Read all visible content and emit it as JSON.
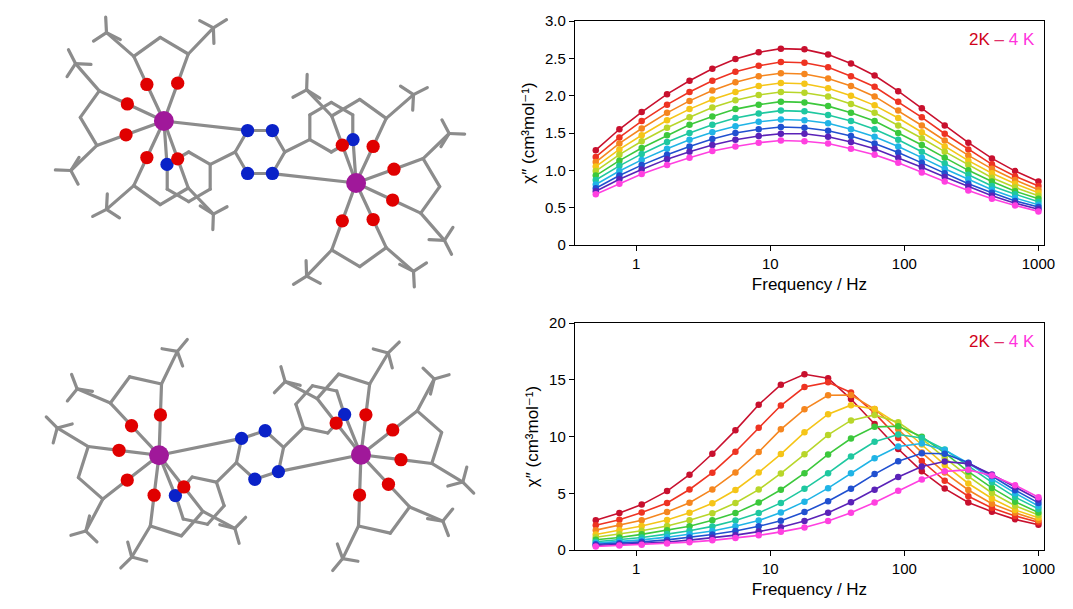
{
  "chart_data": [
    {
      "type": "line",
      "x": [
        0.5,
        0.75,
        1.1,
        1.7,
        2.5,
        3.7,
        5.5,
        8.2,
        12,
        18,
        27,
        40,
        60,
        90,
        135,
        200,
        300,
        450,
        670,
        1000
      ],
      "x_label": "Frequency / Hz",
      "y_label": "χ″ (cm³mol⁻¹)",
      "xlim": [
        0.35,
        1100
      ],
      "xticks": [
        1,
        10,
        100,
        1000
      ],
      "ylim": [
        0,
        3
      ],
      "yticks": [
        0,
        0.5,
        {
          "value": 1,
          "label": "1.0"
        },
        1.5,
        {
          "value": 2,
          "label": "2.0"
        },
        2.5,
        {
          "value": 3,
          "label": "3.0"
        }
      ],
      "log": "x",
      "grid": false,
      "marker": "circle",
      "line_style": "solid",
      "annotation": [
        {
          "text": "2K",
          "color": "#d0021b"
        },
        {
          "text": " – ",
          "color": "#e0306a"
        },
        {
          "text": "4 K",
          "color": "#ff33dd"
        }
      ],
      "series": [
        {
          "color": "#c8102e",
          "values": [
            1.27,
            1.55,
            1.78,
            2.02,
            2.2,
            2.36,
            2.49,
            2.58,
            2.63,
            2.62,
            2.55,
            2.43,
            2.27,
            2.06,
            1.83,
            1.6,
            1.37,
            1.16,
            0.99,
            0.85
          ]
        },
        {
          "color": "#ee3322",
          "values": [
            1.18,
            1.44,
            1.66,
            1.88,
            2.05,
            2.2,
            2.32,
            2.4,
            2.45,
            2.44,
            2.38,
            2.26,
            2.12,
            1.92,
            1.71,
            1.49,
            1.28,
            1.08,
            0.92,
            0.79
          ]
        },
        {
          "color": "#f5861f",
          "values": [
            1.11,
            1.36,
            1.56,
            1.77,
            1.93,
            2.07,
            2.18,
            2.26,
            2.3,
            2.29,
            2.23,
            2.13,
            1.99,
            1.8,
            1.6,
            1.4,
            1.2,
            1.02,
            0.87,
            0.74
          ]
        },
        {
          "color": "#f5c518",
          "values": [
            1.05,
            1.28,
            1.47,
            1.67,
            1.82,
            1.95,
            2.05,
            2.13,
            2.17,
            2.16,
            2.1,
            2.0,
            1.87,
            1.7,
            1.51,
            1.32,
            1.13,
            0.96,
            0.82,
            0.7
          ]
        },
        {
          "color": "#b8d62a",
          "values": [
            0.99,
            1.21,
            1.39,
            1.57,
            1.71,
            1.84,
            1.94,
            2.01,
            2.05,
            2.04,
            1.99,
            1.89,
            1.77,
            1.6,
            1.43,
            1.25,
            1.07,
            0.9,
            0.77,
            0.66
          ]
        },
        {
          "color": "#3cc83c",
          "values": [
            0.93,
            1.13,
            1.3,
            1.47,
            1.61,
            1.72,
            1.82,
            1.88,
            1.92,
            1.91,
            1.86,
            1.77,
            1.66,
            1.5,
            1.34,
            1.17,
            1.0,
            0.85,
            0.72,
            0.62
          ]
        },
        {
          "color": "#1fc8a0",
          "values": [
            0.87,
            1.06,
            1.22,
            1.38,
            1.5,
            1.61,
            1.7,
            1.76,
            1.8,
            1.79,
            1.74,
            1.66,
            1.55,
            1.41,
            1.25,
            1.09,
            0.94,
            0.79,
            0.68,
            0.58
          ]
        },
        {
          "color": "#20b4e6",
          "values": [
            0.81,
            0.99,
            1.14,
            1.29,
            1.41,
            1.51,
            1.59,
            1.65,
            1.68,
            1.67,
            1.63,
            1.55,
            1.45,
            1.32,
            1.17,
            1.02,
            0.88,
            0.74,
            0.63,
            0.54
          ]
        },
        {
          "color": "#2050d0",
          "values": [
            0.76,
            0.93,
            1.07,
            1.21,
            1.32,
            1.42,
            1.5,
            1.55,
            1.58,
            1.57,
            1.53,
            1.46,
            1.36,
            1.24,
            1.1,
            0.96,
            0.82,
            0.7,
            0.59,
            0.51
          ]
        },
        {
          "color": "#5a22b8",
          "values": [
            0.72,
            0.88,
            1.01,
            1.15,
            1.25,
            1.34,
            1.41,
            1.46,
            1.49,
            1.49,
            1.45,
            1.38,
            1.29,
            1.17,
            1.04,
            0.91,
            0.78,
            0.66,
            0.56,
            0.48
          ]
        },
        {
          "color": "#ff40e0",
          "values": [
            0.68,
            0.82,
            0.95,
            1.07,
            1.17,
            1.26,
            1.32,
            1.37,
            1.4,
            1.39,
            1.36,
            1.29,
            1.21,
            1.1,
            0.97,
            0.85,
            0.73,
            0.62,
            0.53,
            0.45
          ]
        }
      ]
    },
    {
      "type": "line",
      "x": [
        0.5,
        0.75,
        1.1,
        1.7,
        2.5,
        3.7,
        5.5,
        8.2,
        12,
        18,
        27,
        40,
        60,
        90,
        135,
        200,
        300,
        450,
        670,
        1000
      ],
      "x_label": "Frequency / Hz",
      "y_label": "χ″ (cm³mol⁻¹)",
      "xlim": [
        0.35,
        1100
      ],
      "xticks": [
        1,
        10,
        100,
        1000
      ],
      "ylim": [
        0,
        20
      ],
      "yticks": [
        0,
        5,
        10,
        15,
        20
      ],
      "log": "x",
      "grid": false,
      "marker": "circle",
      "line_style": "solid",
      "annotation": [
        {
          "text": "2K",
          "color": "#d0021b"
        },
        {
          "text": " – ",
          "color": "#e0306a"
        },
        {
          "text": "4 K",
          "color": "#ff33dd"
        }
      ],
      "series": [
        {
          "color": "#c8102e",
          "values": [
            2.62,
            3.26,
            4.0,
            5.19,
            6.63,
            8.48,
            10.54,
            12.8,
            14.57,
            15.48,
            15.14,
            13.3,
            11.1,
            8.9,
            6.93,
            5.41,
            4.19,
            3.38,
            2.7,
            2.22
          ]
        },
        {
          "color": "#ee3322",
          "values": [
            2.18,
            2.66,
            3.3,
            4.14,
            5.33,
            6.81,
            8.66,
            10.77,
            12.73,
            14.36,
            14.77,
            13.88,
            12.06,
            9.87,
            7.84,
            6.11,
            4.74,
            3.7,
            3.0,
            2.44
          ]
        },
        {
          "color": "#f5861f",
          "values": [
            1.75,
            2.17,
            2.62,
            3.35,
            4.17,
            5.34,
            6.83,
            8.64,
            10.63,
            12.39,
            13.63,
            13.66,
            12.42,
            10.64,
            8.58,
            6.82,
            5.29,
            4.08,
            3.28,
            2.62
          ]
        },
        {
          "color": "#f5c518",
          "values": [
            1.36,
            1.73,
            2.11,
            2.65,
            3.28,
            4.12,
            5.29,
            6.82,
            8.45,
            10.37,
            11.97,
            12.76,
            12.42,
            11.1,
            9.29,
            7.5,
            5.86,
            4.54,
            3.53,
            2.84
          ]
        },
        {
          "color": "#b8d62a",
          "values": [
            1.12,
            1.39,
            1.7,
            2.12,
            2.62,
            3.24,
            4.14,
            5.32,
            6.75,
            8.43,
            10.14,
            11.42,
            11.9,
            11.25,
            9.82,
            8.12,
            6.49,
            5.02,
            3.9,
            3.08
          ]
        },
        {
          "color": "#3cc83c",
          "values": [
            0.9,
            1.1,
            1.38,
            1.73,
            2.09,
            2.62,
            3.25,
            4.18,
            5.31,
            6.77,
            8.42,
            9.82,
            10.85,
            10.9,
            9.98,
            8.56,
            6.91,
            5.47,
            4.26,
            3.3
          ]
        },
        {
          "color": "#1fc8a0",
          "values": [
            0.73,
            0.9,
            1.1,
            1.4,
            1.69,
            2.08,
            2.6,
            3.26,
            4.15,
            5.39,
            6.77,
            8.24,
            9.54,
            10.18,
            9.87,
            8.85,
            7.42,
            5.96,
            4.66,
            3.62
          ]
        },
        {
          "color": "#20b4e6",
          "values": [
            0.61,
            0.73,
            0.89,
            1.13,
            1.38,
            1.67,
            2.1,
            2.59,
            3.3,
            4.26,
            5.45,
            6.77,
            8.08,
            9.12,
            9.38,
            8.82,
            7.66,
            6.27,
            5.01,
            3.88
          ]
        },
        {
          "color": "#2050d0",
          "values": [
            0.5,
            0.6,
            0.72,
            0.89,
            1.11,
            1.37,
            1.67,
            2.09,
            2.58,
            3.34,
            4.3,
            5.4,
            6.69,
            7.81,
            8.52,
            8.48,
            7.68,
            6.52,
            5.27,
            4.15
          ]
        },
        {
          "color": "#5a22b8",
          "values": [
            0.39,
            0.48,
            0.58,
            0.7,
            0.87,
            1.07,
            1.31,
            1.62,
            2.0,
            2.55,
            3.28,
            4.21,
            5.3,
            6.43,
            7.36,
            7.79,
            7.61,
            6.65,
            5.55,
            4.45
          ]
        },
        {
          "color": "#ff40e0",
          "values": [
            0.31,
            0.39,
            0.47,
            0.57,
            0.69,
            0.85,
            1.05,
            1.29,
            1.6,
            1.99,
            2.56,
            3.29,
            4.19,
            5.22,
            6.21,
            6.93,
            7.06,
            6.57,
            5.71,
            4.65
          ]
        }
      ]
    }
  ]
}
